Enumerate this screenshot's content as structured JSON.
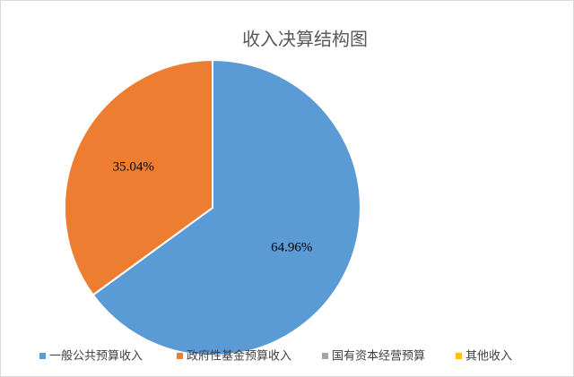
{
  "chart_data": {
    "type": "pie",
    "title": "收入决算结构图",
    "categories": [
      "一般公共预算收入",
      "政府性基金预算收入",
      "国有资本经营预算",
      "其他收入"
    ],
    "values": [
      64.96,
      35.04,
      0,
      0
    ],
    "value_labels": [
      "64.96%",
      "35.04%",
      null,
      null
    ],
    "colors": [
      "#5b9bd5",
      "#ed7d31",
      "#a5a5a5",
      "#ffc000"
    ],
    "legend": "bottom"
  }
}
